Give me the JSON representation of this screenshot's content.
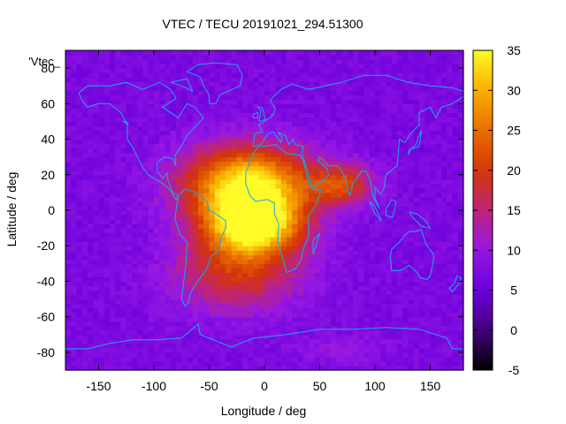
{
  "chart_data": {
    "type": "heatmap",
    "title": "VTEC / TECU 20191021_294.51300",
    "xlabel": "Longitude / deg",
    "ylabel": "Latitude / deg",
    "legend_label": "'Vtec_",
    "xlim": [
      -180,
      180
    ],
    "ylim": [
      -90,
      90
    ],
    "x_ticks": [
      -150,
      -100,
      -50,
      0,
      50,
      100,
      150
    ],
    "y_ticks": [
      -80,
      -60,
      -40,
      -20,
      0,
      20,
      40,
      60,
      80
    ],
    "colorbar": {
      "range": [
        -5,
        35
      ],
      "ticks": [
        -5,
        0,
        5,
        10,
        15,
        20,
        25,
        30,
        35
      ]
    },
    "background_value": 7,
    "features": [
      {
        "name": "equatorial-anomaly-crest-north",
        "lon": -15,
        "lat": 15,
        "peak": 27,
        "sigma_lon": 40,
        "sigma_lat": 15
      },
      {
        "name": "equatorial-anomaly-crest-south",
        "lon": -10,
        "lat": -8,
        "peak": 28,
        "sigma_lon": 30,
        "sigma_lat": 12
      },
      {
        "name": "southern-extension",
        "lon": -25,
        "lat": -35,
        "peak": 12,
        "sigma_lon": 40,
        "sigma_lat": 15
      },
      {
        "name": "asian-extension",
        "lon": 70,
        "lat": 15,
        "peak": 13,
        "sigma_lon": 20,
        "sigma_lat": 8
      },
      {
        "name": "southern-high-lat-patch",
        "lon": 70,
        "lat": -78,
        "peak": 3,
        "sigma_lon": 30,
        "sigma_lat": 6
      }
    ],
    "overlay": "coastlines"
  }
}
